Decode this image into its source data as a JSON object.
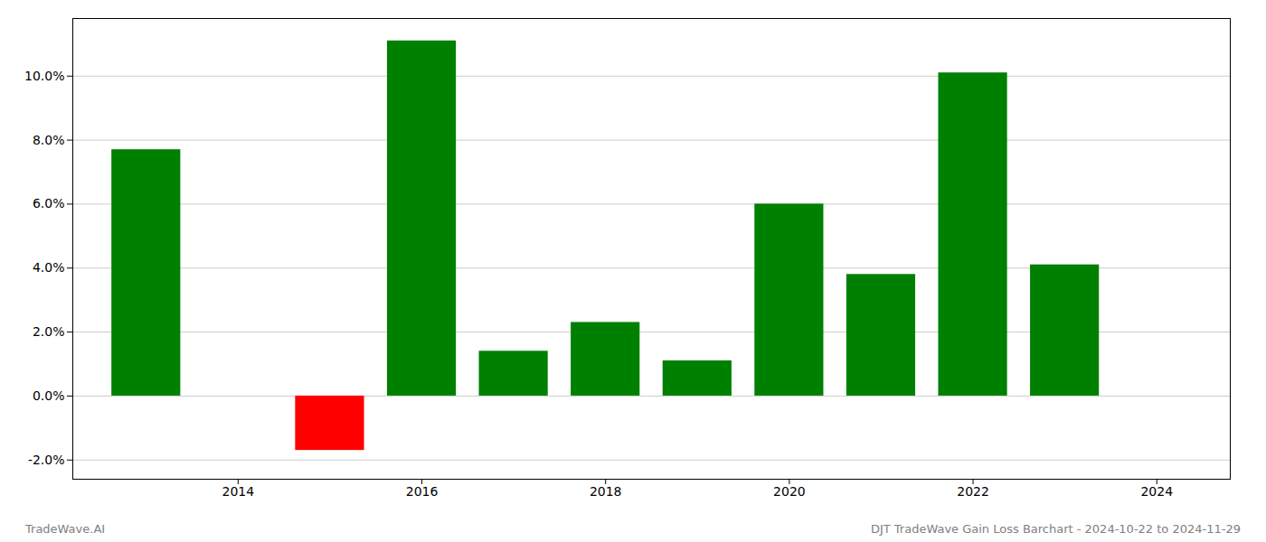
{
  "chart_data": {
    "type": "bar",
    "x": [
      2013,
      2015,
      2016,
      2017,
      2018,
      2019,
      2020,
      2021,
      2022,
      2023
    ],
    "values": [
      0.077,
      -0.017,
      0.111,
      0.014,
      0.023,
      0.011,
      0.06,
      0.038,
      0.101,
      0.041
    ],
    "colors": [
      "#008000",
      "#ff0000",
      "#008000",
      "#008000",
      "#008000",
      "#008000",
      "#008000",
      "#008000",
      "#008000",
      "#008000"
    ],
    "xlim": [
      2012.2,
      2024.8
    ],
    "ylim": [
      -0.026,
      0.118
    ],
    "xticks": [
      2014,
      2016,
      2018,
      2020,
      2022,
      2024
    ],
    "yticks": [
      {
        "value": -0.02,
        "label": "-2.0%"
      },
      {
        "value": 0.0,
        "label": "0.0%"
      },
      {
        "value": 0.02,
        "label": "2.0%"
      },
      {
        "value": 0.04,
        "label": "4.0%"
      },
      {
        "value": 0.06,
        "label": "6.0%"
      },
      {
        "value": 0.08,
        "label": "8.0%"
      },
      {
        "value": 0.1,
        "label": "10.0%"
      }
    ],
    "grid": "y",
    "annotations": [
      "TradeWave.AI",
      "DJT TradeWave Gain Loss Barchart - 2024-10-22 to 2024-11-29"
    ]
  }
}
